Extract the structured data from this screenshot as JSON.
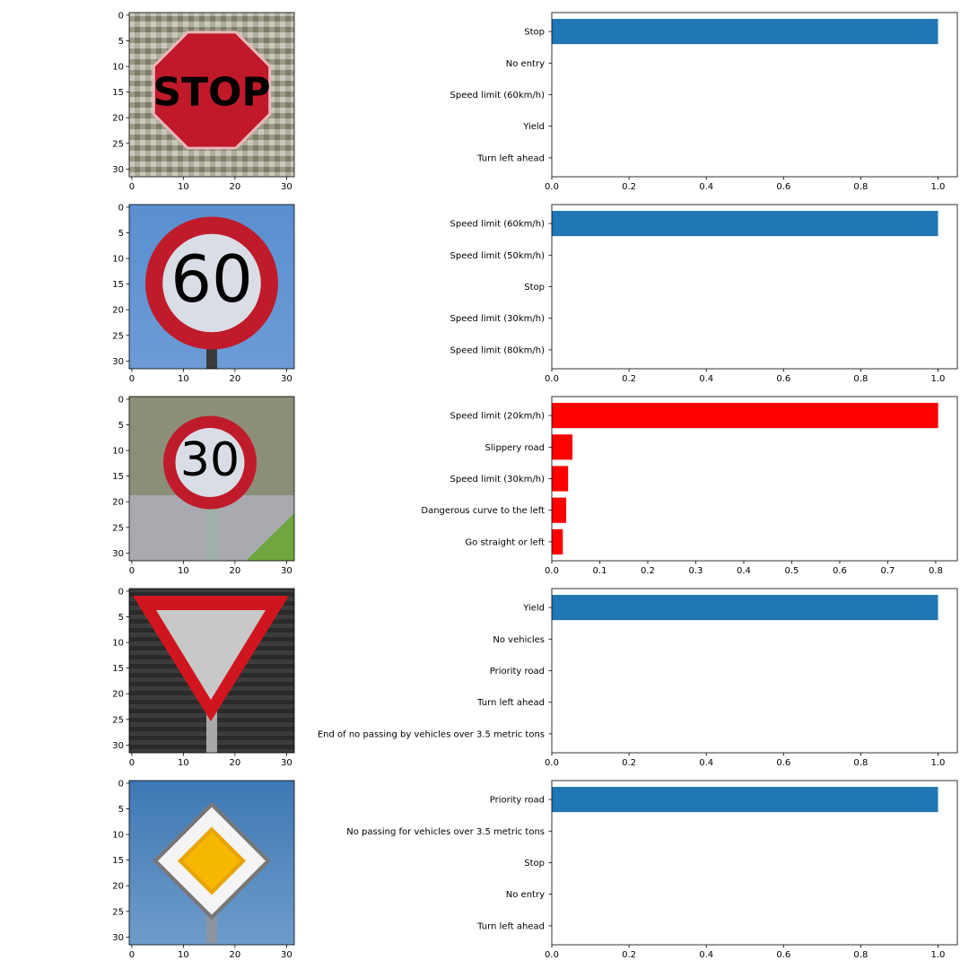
{
  "chart_data": [
    {
      "type": "bar",
      "orientation": "horizontal",
      "image": {
        "sign": "stop-sign",
        "xticks": [
          "0",
          "10",
          "20",
          "30"
        ],
        "yticks": [
          "0",
          "5",
          "10",
          "15",
          "20",
          "25",
          "30"
        ]
      },
      "categories": [
        "Stop",
        "No entry",
        "Speed limit (60km/h)",
        "Yield",
        "Turn left ahead"
      ],
      "values": [
        1.0,
        0.0,
        0.0,
        0.0,
        0.0
      ],
      "xlim": [
        0,
        1.05
      ],
      "xticks": [
        "0.0",
        "0.2",
        "0.4",
        "0.6",
        "0.8",
        "1.0"
      ],
      "xtick_values": [
        0,
        0.2,
        0.4,
        0.6,
        0.8,
        1.0
      ],
      "bar_color": "#1f77b4"
    },
    {
      "type": "bar",
      "orientation": "horizontal",
      "image": {
        "sign": "speed-limit-60-sign",
        "xticks": [
          "0",
          "10",
          "20",
          "30"
        ],
        "yticks": [
          "0",
          "5",
          "10",
          "15",
          "20",
          "25",
          "30"
        ]
      },
      "categories": [
        "Speed limit (60km/h)",
        "Speed limit (50km/h)",
        "Stop",
        "Speed limit (30km/h)",
        "Speed limit (80km/h)"
      ],
      "values": [
        1.0,
        0.0,
        0.0,
        0.0,
        0.0
      ],
      "xlim": [
        0,
        1.05
      ],
      "xticks": [
        "0.0",
        "0.2",
        "0.4",
        "0.6",
        "0.8",
        "1.0"
      ],
      "xtick_values": [
        0,
        0.2,
        0.4,
        0.6,
        0.8,
        1.0
      ],
      "bar_color": "#1f77b4"
    },
    {
      "type": "bar",
      "orientation": "horizontal",
      "image": {
        "sign": "speed-limit-30-sign",
        "xticks": [
          "0",
          "10",
          "20",
          "30"
        ],
        "yticks": [
          "0",
          "5",
          "10",
          "15",
          "20",
          "25",
          "30"
        ]
      },
      "categories": [
        "Speed limit (20km/h)",
        "Slippery road",
        "Speed limit (30km/h)",
        "Dangerous curve to the left",
        "Go straight or left"
      ],
      "values": [
        0.805,
        0.043,
        0.034,
        0.03,
        0.023
      ],
      "xlim": [
        0,
        0.845
      ],
      "xticks": [
        "0.0",
        "0.1",
        "0.2",
        "0.3",
        "0.4",
        "0.5",
        "0.6",
        "0.7",
        "0.8"
      ],
      "xtick_values": [
        0,
        0.1,
        0.2,
        0.3,
        0.4,
        0.5,
        0.6,
        0.7,
        0.8
      ],
      "bar_color": "#ff0000"
    },
    {
      "type": "bar",
      "orientation": "horizontal",
      "image": {
        "sign": "yield-sign",
        "xticks": [
          "0",
          "10",
          "20",
          "30"
        ],
        "yticks": [
          "0",
          "5",
          "10",
          "15",
          "20",
          "25",
          "30"
        ]
      },
      "categories": [
        "Yield",
        "No vehicles",
        "Priority road",
        "Turn left ahead",
        "End of no passing by vehicles over 3.5 metric tons"
      ],
      "values": [
        1.0,
        0.0,
        0.0,
        0.0,
        0.0
      ],
      "xlim": [
        0,
        1.05
      ],
      "xticks": [
        "0.0",
        "0.2",
        "0.4",
        "0.6",
        "0.8",
        "1.0"
      ],
      "xtick_values": [
        0,
        0.2,
        0.4,
        0.6,
        0.8,
        1.0
      ],
      "bar_color": "#1f77b4"
    },
    {
      "type": "bar",
      "orientation": "horizontal",
      "image": {
        "sign": "priority-road-sign",
        "xticks": [
          "0",
          "10",
          "20",
          "30"
        ],
        "yticks": [
          "0",
          "5",
          "10",
          "15",
          "20",
          "25",
          "30"
        ]
      },
      "categories": [
        "Priority road",
        "No passing for vehicles over 3.5 metric tons",
        "Stop",
        "No entry",
        "Turn left ahead"
      ],
      "values": [
        1.0,
        0.0,
        0.0,
        0.0,
        0.0
      ],
      "xlim": [
        0,
        1.05
      ],
      "xticks": [
        "0.0",
        "0.2",
        "0.4",
        "0.6",
        "0.8",
        "1.0"
      ],
      "xtick_values": [
        0,
        0.2,
        0.4,
        0.6,
        0.8,
        1.0
      ],
      "bar_color": "#1f77b4"
    }
  ]
}
